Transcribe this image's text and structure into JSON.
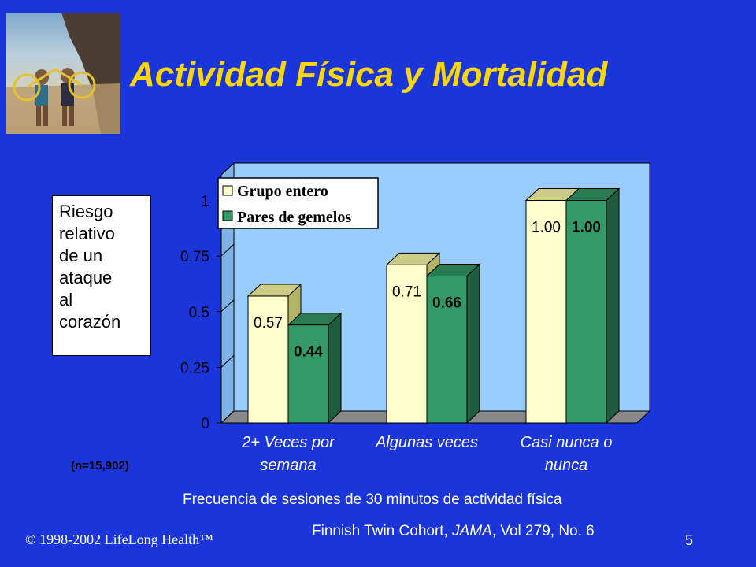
{
  "title": "Actividad Física y Mortalidad",
  "ylabel_lines": [
    "Riesgo",
    "relativo",
    "de un",
    "ataque",
    "al",
    "corazón"
  ],
  "sample_note": "(n=15,902)",
  "xlabel": "Frecuencia de sesiones de 30 minutos de actividad física",
  "copyright": "© 1998-2002 LifeLong Health™",
  "citation": {
    "pre": "Finnish Twin Cohort, ",
    "journal": "JAMA",
    "post": ", Vol 279, No. 6"
  },
  "page_number": "5",
  "colors": {
    "background": "#1a35d9",
    "title": "#ffd700",
    "plot_bg": "#99ccff",
    "series1": "#ffffcc",
    "series2": "#339966"
  },
  "chart_data": {
    "type": "bar",
    "categories": [
      [
        "2+ Veces por",
        "semana"
      ],
      [
        "Algunas veces"
      ],
      [
        "Casi nunca o",
        "nunca"
      ]
    ],
    "series": [
      {
        "name": "Grupo entero",
        "values": [
          0.57,
          0.71,
          1.0
        ],
        "labels": [
          "0.57",
          "0.71",
          "1.00"
        ]
      },
      {
        "name": "Pares de gemelos",
        "values": [
          0.44,
          0.66,
          1.0
        ],
        "labels": [
          "0.44",
          "0.66",
          "1.00"
        ]
      }
    ],
    "yticks": [
      "0",
      "0.25",
      "0.5",
      "0.75",
      "1"
    ],
    "ylim": [
      0,
      1.05
    ],
    "legend": "top-left",
    "grid": false
  }
}
